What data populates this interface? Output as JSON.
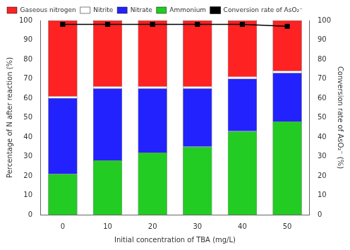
{
  "chart_data": {
    "type": "bar",
    "stacked": true,
    "categories": [
      "0",
      "10",
      "20",
      "30",
      "40",
      "50"
    ],
    "xlabel": "Initial concentration of TBA (mg/L)",
    "ylabel": "Percentage of N after reaction (%)",
    "y2label": "Conversion rate of AsO₂⁻ (%)",
    "ylim": [
      0,
      100
    ],
    "yticks": [
      0,
      10,
      20,
      30,
      40,
      50,
      60,
      70,
      80,
      90,
      100
    ],
    "y2lim": [
      0,
      100
    ],
    "y2ticks": [
      0,
      10,
      20,
      30,
      40,
      50,
      60,
      70,
      80,
      90,
      100
    ],
    "grid": false,
    "legend": "upper left",
    "series": [
      {
        "name": "Ammonium",
        "color": "#22CC22",
        "values": [
          21,
          28,
          32,
          35,
          43,
          48
        ]
      },
      {
        "name": "Nitrate",
        "color": "#2222FF",
        "values": [
          39,
          37,
          33,
          30,
          27,
          25
        ]
      },
      {
        "name": "Nitrite",
        "color": "#FFFFFF",
        "values": [
          1,
          1,
          1,
          1,
          1,
          1
        ]
      },
      {
        "name": "Gaseous nitrogen",
        "color": "#FF2222",
        "values": [
          39,
          34,
          34,
          34,
          29,
          26
        ]
      },
      {
        "name": "Conversion rate of AsO₂⁻",
        "type": "line",
        "axis": "y2",
        "color": "#000000",
        "marker": "square",
        "line_style": "solid",
        "values": [
          98,
          98,
          98,
          98,
          98,
          97
        ]
      }
    ]
  }
}
